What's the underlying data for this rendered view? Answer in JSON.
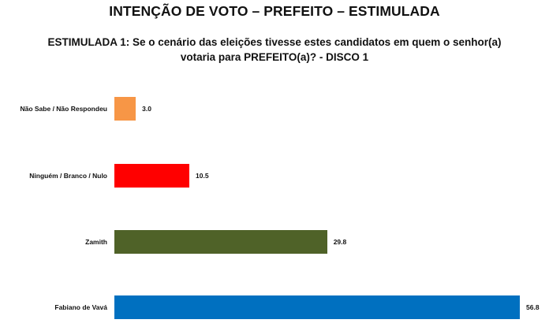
{
  "header": {
    "title": "INTENÇÃO DE VOTO – PREFEITO – ESTIMULADA",
    "subtitle": "ESTIMULADA 1: Se o cenário das eleições tivesse estes candidatos em quem o senhor(a) votaria para PREFEITO(a)? - DISCO 1"
  },
  "chart_data": {
    "type": "bar",
    "orientation": "horizontal",
    "title": "INTENÇÃO DE VOTO – PREFEITO – ESTIMULADA",
    "subtitle": "ESTIMULADA 1: Se o cenário das eleições tivesse estes candidatos em quem o senhor(a) votaria para PREFEITO(a)? - DISCO 1",
    "xlabel": "",
    "ylabel": "",
    "grid": false,
    "legend": null,
    "categories": [
      "Não Sabe / Não Respondeu",
      "Ninguém / Branco / Nulo",
      "Zamith",
      "Fabiano de Vavá"
    ],
    "values": [
      3.0,
      10.5,
      29.8,
      56.8
    ],
    "value_labels": [
      "3.0",
      "10.5",
      "29.8",
      "56.8"
    ],
    "colors": [
      "#F79646",
      "#FF0000",
      "#4F6228",
      "#0070C0"
    ]
  }
}
